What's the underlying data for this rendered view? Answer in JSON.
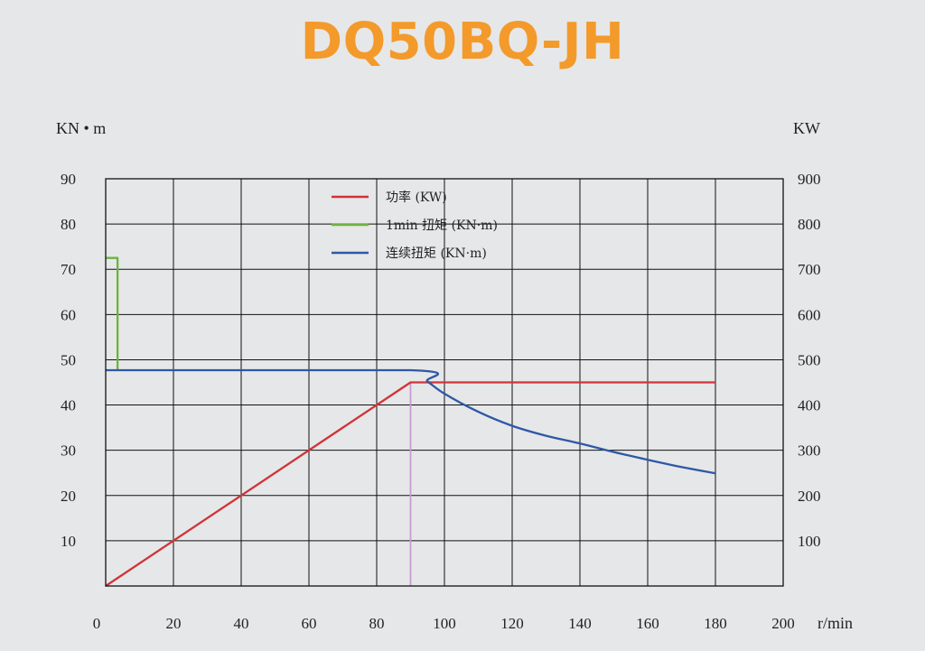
{
  "chart_data": {
    "type": "line",
    "title": "DQ50BQ-JH",
    "title_color": "#f39a2b",
    "y_left_label": "KN • m",
    "y_right_label": "KW",
    "x_unit_label": "r/min",
    "xlim": [
      0,
      200
    ],
    "ylim_left": [
      0,
      90
    ],
    "ylim_right": [
      0,
      900
    ],
    "x_ticks": [
      0,
      20,
      40,
      60,
      80,
      100,
      120,
      140,
      160,
      180,
      200
    ],
    "y_left_ticks": [
      10,
      20,
      30,
      40,
      50,
      60,
      70,
      80,
      90
    ],
    "y_right_ticks": [
      100,
      200,
      300,
      400,
      500,
      600,
      700,
      800,
      900
    ],
    "grid": true,
    "legend_position": "top-center",
    "base_speed_marker": {
      "x": 90,
      "color": "#c79bd1"
    },
    "series": [
      {
        "name": "功率 (KW)",
        "color": "#d0333a",
        "axis": "right",
        "x": [
          0,
          90,
          180
        ],
        "y": [
          0,
          450,
          450
        ]
      },
      {
        "name": "1min 扭矩 (KN·m)",
        "color": "#6cb33f",
        "axis": "left",
        "x": [
          0,
          3.5,
          3.5
        ],
        "y": [
          72.5,
          72.5,
          47.7
        ]
      },
      {
        "name": "连续扭矩 (KN·m)",
        "color": "#2f58a6",
        "axis": "left",
        "x": [
          0,
          90,
          95,
          100,
          110,
          120,
          130,
          140,
          150,
          160,
          170,
          180
        ],
        "y": [
          47.7,
          47.7,
          45.2,
          42.5,
          38.5,
          35.4,
          33.2,
          31.5,
          29.6,
          27.9,
          26.3,
          24.9
        ]
      }
    ]
  }
}
